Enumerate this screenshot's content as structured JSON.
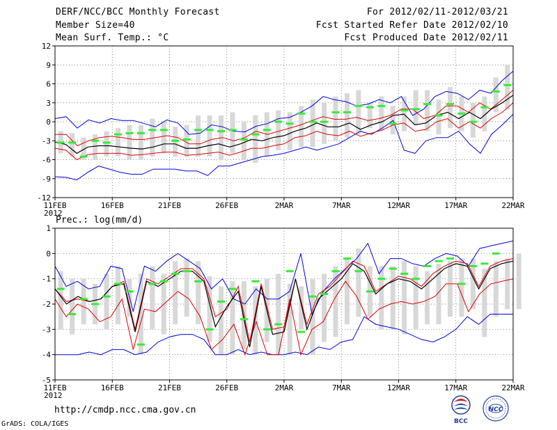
{
  "header": {
    "title": "DERF/NCC/BCC Monthly Forecast",
    "member_size": "Member Size=40",
    "variable": "Mean Surf. Temp.: °C",
    "period": "For 2012/02/11-2012/03/21",
    "fcst_started": "Fcst Started Refer Date 2012/02/10",
    "fcst_produced": "Fcst Produced Date 2012/02/11"
  },
  "precip_title": "Prec.: log(mm/d)",
  "footer": {
    "url": "http://cmdp.ncc.cma.gov.cn",
    "grads": "GrADS: COLA/IGES",
    "logo_left": "BCC",
    "logo_right": "NCC"
  },
  "colors": {
    "box": "#d8d8d8",
    "envelope": "#0000dd",
    "spread": "#dd0000",
    "mean": "#000000",
    "median": "#33ee33",
    "grid": "#555555"
  },
  "chart_data": [
    {
      "type": "line",
      "name": "temperature",
      "title": "Mean Surf. Temp.: °C",
      "xlabel": "",
      "ylabel": "",
      "xlim": [
        0,
        40
      ],
      "ylim": [
        -12,
        12
      ],
      "yticks": [
        -12,
        -9,
        -6,
        -3,
        0,
        3,
        6,
        9,
        12
      ],
      "xticks": [
        {
          "x": 0,
          "label": "11FEB",
          "sub": "2012"
        },
        {
          "x": 5,
          "label": "16FEB"
        },
        {
          "x": 10,
          "label": "21FEB"
        },
        {
          "x": 15,
          "label": "26FEB"
        },
        {
          "x": 20,
          "label": "2MAR"
        },
        {
          "x": 25,
          "label": "7MAR"
        },
        {
          "x": 30,
          "label": "12MAR"
        },
        {
          "x": 35,
          "label": "17MAR"
        },
        {
          "x": 40,
          "label": "22MAR"
        }
      ],
      "series": [
        {
          "name": "max",
          "values": [
            0.5,
            0.8,
            -1.0,
            0.3,
            -0.2,
            0.5,
            0.2,
            0.2,
            -0.3,
            -0.8,
            0.3,
            -0.2,
            -2.0,
            -1.8,
            -0.5,
            -0.8,
            -1.5,
            -1.6,
            -0.7,
            -0.3,
            0.5,
            0.7,
            1.5,
            2.5,
            4.0,
            3.5,
            3.2,
            2.5,
            2.8,
            3.5,
            3.0,
            4.0,
            1.0,
            2.0,
            4.0,
            4.8,
            4.5,
            3.5,
            5.0,
            4.5,
            6.5,
            8.0
          ]
        },
        {
          "name": "upper",
          "values": [
            -2.0,
            -2.0,
            -3.8,
            -3.0,
            -2.5,
            -2.3,
            -2.5,
            -2.8,
            -2.8,
            -2.5,
            -2.2,
            -2.5,
            -3.5,
            -3.5,
            -2.8,
            -2.5,
            -3.0,
            -2.5,
            -1.5,
            -2.0,
            -1.5,
            -1.0,
            -0.5,
            0.2,
            0.8,
            0.4,
            0.4,
            0.7,
            0.2,
            0.5,
            1.0,
            2.0,
            2.0,
            0.5,
            1.0,
            2.5,
            2.5,
            1.5,
            3.0,
            2.0,
            3.5,
            5.0
          ]
        },
        {
          "name": "mean",
          "values": [
            -3.2,
            -3.6,
            -5.0,
            -4.0,
            -3.8,
            -3.8,
            -4.0,
            -4.2,
            -4.3,
            -4.0,
            -3.5,
            -3.5,
            -4.2,
            -4.2,
            -3.8,
            -3.5,
            -4.0,
            -3.5,
            -2.8,
            -3.0,
            -2.5,
            -2.2,
            -1.5,
            -1.0,
            -0.2,
            -0.8,
            -0.8,
            -0.2,
            -1.2,
            -0.5,
            0.0,
            1.0,
            1.2,
            -0.5,
            -0.2,
            1.0,
            1.5,
            0.5,
            1.5,
            0.5,
            2.0,
            3.0,
            4.2
          ]
        },
        {
          "name": "lower",
          "values": [
            -4.2,
            -4.5,
            -6.0,
            -5.2,
            -5.0,
            -5.0,
            -5.0,
            -5.3,
            -5.2,
            -5.0,
            -4.8,
            -4.8,
            -5.3,
            -5.2,
            -5.0,
            -4.8,
            -5.3,
            -4.8,
            -4.2,
            -4.2,
            -3.8,
            -3.5,
            -2.5,
            -2.2,
            -1.5,
            -2.0,
            -2.2,
            -1.5,
            -2.3,
            -1.8,
            -1.3,
            -0.5,
            -0.2,
            -1.5,
            -1.2,
            0.0,
            0.5,
            -1.0,
            0.0,
            -1.0,
            0.5,
            1.5,
            3.0
          ]
        },
        {
          "name": "min",
          "values": [
            -8.7,
            -8.8,
            -9.2,
            -8.0,
            -7.0,
            -7.5,
            -8.0,
            -8.3,
            -8.3,
            -7.5,
            -7.5,
            -7.5,
            -7.8,
            -7.8,
            -8.5,
            -7.0,
            -7.0,
            -6.5,
            -6.0,
            -5.5,
            -5.3,
            -5.0,
            -4.5,
            -4.0,
            -4.5,
            -4.0,
            -3.5,
            -2.5,
            -1.5,
            -2.0,
            -1.0,
            0.2,
            -4.5,
            -5.0,
            -3.0,
            -2.5,
            -2.5,
            -1.5,
            -3.5,
            -5.0,
            -2.0,
            -0.5,
            1.2
          ]
        },
        {
          "name": "median",
          "values": [
            -3.3,
            -3.3,
            -5.5,
            -3.0,
            -3.3,
            -2.0,
            -1.8,
            -1.8,
            -1.3,
            -1.3,
            -3.0,
            -2.8,
            -1.3,
            -1.3,
            -1.5,
            -1.3,
            -2.8,
            -2.0,
            -1.3,
            0.0,
            -0.3,
            1.3,
            0.0,
            0.0,
            1.5,
            1.5,
            2.5,
            2.3,
            2.5,
            -0.3,
            1.8,
            2.0,
            2.8,
            1.0,
            2.8,
            1.3,
            0.0,
            2.3,
            4.8,
            5.8
          ]
        },
        {
          "name": "box_top",
          "values": [
            -1.5,
            -1.8,
            -2.5,
            -2.0,
            -1.5,
            -1.0,
            -0.5,
            -0.5,
            0.5,
            0.0,
            -0.8,
            -0.5,
            1.0,
            1.0,
            1.0,
            1.5,
            0.0,
            1.0,
            1.5,
            1.8,
            1.5,
            2.5,
            3.5,
            3.0,
            4.0,
            4.5,
            5.0,
            3.0,
            4.0,
            2.5,
            4.0,
            5.0,
            5.0,
            3.5,
            5.5,
            4.0,
            3.0,
            4.0,
            7.0,
            9.0
          ]
        },
        {
          "name": "box_bottom",
          "values": [
            -5.0,
            -5.5,
            -6.0,
            -6.0,
            -5.5,
            -5.5,
            -6.0,
            -6.0,
            -5.5,
            -5.0,
            -5.5,
            -5.5,
            -5.5,
            -5.5,
            -6.0,
            -5.0,
            -6.0,
            -6.5,
            -5.5,
            -4.5,
            -4.5,
            -4.0,
            -4.0,
            -3.5,
            -3.0,
            -2.5,
            -2.0,
            -1.0,
            -1.5,
            -2.0,
            -1.5,
            -0.5,
            -1.5,
            -2.0,
            -1.0,
            -1.5,
            -2.5,
            -1.5,
            1.5,
            2.0
          ]
        }
      ]
    },
    {
      "type": "line",
      "name": "precipitation",
      "title": "Prec.: log(mm/d)",
      "xlabel": "",
      "ylabel": "",
      "xlim": [
        0,
        40
      ],
      "ylim": [
        -5,
        1
      ],
      "yticks": [
        -5,
        -4,
        -3,
        -2,
        -1,
        0,
        1
      ],
      "xticks": [
        {
          "x": 0,
          "label": "11FEB",
          "sub": "2012"
        },
        {
          "x": 5,
          "label": "16FEB"
        },
        {
          "x": 10,
          "label": "21FEB"
        },
        {
          "x": 15,
          "label": "26FEB"
        },
        {
          "x": 20,
          "label": "2MAR"
        },
        {
          "x": 25,
          "label": "7MAR"
        },
        {
          "x": 30,
          "label": "12MAR"
        },
        {
          "x": 35,
          "label": "17MAR"
        },
        {
          "x": 40,
          "label": "22MAR"
        }
      ],
      "series": [
        {
          "name": "max",
          "values": [
            -0.5,
            -1.3,
            -1.1,
            -1.4,
            -1.3,
            -0.5,
            -0.6,
            -2.3,
            -0.5,
            -0.7,
            -0.3,
            0.0,
            -0.3,
            -0.6,
            -1.4,
            -1.0,
            -1.8,
            -2.0,
            -1.4,
            -1.8,
            -1.8,
            -1.5,
            0.0,
            -2.4,
            -1.5,
            -1.0,
            -0.6,
            -0.2,
            0.4,
            -0.8,
            -0.2,
            -0.2,
            -0.4,
            -0.5,
            -0.2,
            0.0,
            -0.1,
            -0.5,
            0.2,
            0.3,
            0.4,
            0.5
          ]
        },
        {
          "name": "upper",
          "values": [
            -1.4,
            -1.9,
            -1.8,
            -1.9,
            -1.8,
            -1.3,
            -1.1,
            -3.0,
            -1.0,
            -1.2,
            -0.9,
            -0.6,
            -0.6,
            -1.0,
            -2.5,
            -2.2,
            -1.3,
            -3.5,
            -1.2,
            -3.0,
            -2.9,
            -1.0,
            -2.8,
            -1.6,
            -1.3,
            -0.8,
            -0.3,
            -0.5,
            -1.5,
            -1.2,
            -0.9,
            -1.0,
            -1.3,
            -0.8,
            -0.5,
            -0.3,
            -0.4,
            -1.3,
            -0.5,
            -0.3,
            -0.2
          ]
        },
        {
          "name": "mean",
          "values": [
            -1.4,
            -2.0,
            -1.7,
            -1.9,
            -1.8,
            -1.3,
            -1.2,
            -3.1,
            -1.1,
            -1.3,
            -1.0,
            -0.7,
            -0.7,
            -1.1,
            -2.9,
            -2.1,
            -1.5,
            -3.7,
            -1.3,
            -3.2,
            -3.1,
            -1.0,
            -3.0,
            -1.8,
            -1.4,
            -1.0,
            -0.4,
            -0.7,
            -1.6,
            -1.2,
            -1.0,
            -1.1,
            -1.4,
            -1.0,
            -0.6,
            -0.4,
            -0.5,
            -1.4,
            -0.6,
            -0.4,
            -0.3
          ]
        },
        {
          "name": "lower",
          "values": [
            -1.8,
            -2.5,
            -2.0,
            -2.2,
            -2.7,
            -2.5,
            -1.8,
            -3.8,
            -2.2,
            -2.3,
            -1.9,
            -1.5,
            -1.8,
            -2.5,
            -3.8,
            -3.4,
            -2.8,
            -4.0,
            -2.7,
            -4.0,
            -4.0,
            -1.8,
            -4.0,
            -3.0,
            -2.7,
            -1.8,
            -1.1,
            -1.7,
            -2.6,
            -2.2,
            -2.0,
            -1.9,
            -2.0,
            -1.9,
            -1.7,
            -1.2,
            -1.2,
            -2.3,
            -1.6,
            -1.2,
            -1.1,
            -1.0
          ]
        },
        {
          "name": "min",
          "values": [
            -4.0,
            -4.0,
            -4.0,
            -3.9,
            -4.0,
            -3.8,
            -3.8,
            -4.0,
            -3.9,
            -3.5,
            -3.3,
            -3.2,
            -3.2,
            -3.4,
            -4.0,
            -4.0,
            -3.8,
            -4.0,
            -3.9,
            -4.0,
            -4.0,
            -3.9,
            -4.0,
            -3.7,
            -3.8,
            -3.5,
            -3.4,
            -2.5,
            -2.8,
            -2.9,
            -3.0,
            -3.2,
            -3.4,
            -3.5,
            -3.3,
            -3.0,
            -2.5,
            -2.8,
            -2.4,
            -2.4,
            -2.4
          ]
        },
        {
          "name": "median",
          "values": [
            -1.4,
            -2.4,
            -1.8,
            -2.0,
            -1.7,
            -1.2,
            -1.5,
            -3.6,
            -1.2,
            -1.1,
            -0.8,
            -0.7,
            -1.1,
            -3.0,
            -1.9,
            -1.4,
            -2.6,
            -1.1,
            -3.0,
            -2.8,
            -0.7,
            -3.1,
            -1.7,
            -1.6,
            -0.7,
            -0.2,
            -0.7,
            -1.5,
            -1.0,
            -0.6,
            -0.8,
            -1.0,
            -0.5,
            -0.3,
            -0.2,
            -1.2,
            -0.5,
            -0.4,
            0.0
          ]
        },
        {
          "name": "box_top",
          "values": [
            -0.7,
            -1.0,
            -1.0,
            -1.2,
            -0.8,
            -0.5,
            -1.0,
            -0.8,
            -0.5,
            -0.8,
            -0.3,
            -0.2,
            -0.3,
            -0.9,
            -1.3,
            -1.1,
            -1.1,
            -1.3,
            -1.0,
            -0.8,
            -1.2,
            -1.3,
            -1.0,
            -0.8,
            -0.5,
            -0.2,
            0.2,
            -0.5,
            -0.5,
            -0.5,
            -0.3,
            -0.5,
            -0.7,
            -0.4,
            -0.3,
            -0.2,
            -0.2,
            -0.6,
            -0.3,
            -0.2,
            0.0
          ]
        },
        {
          "name": "box_bottom",
          "values": [
            -3.0,
            -3.2,
            -2.8,
            -2.8,
            -3.0,
            -2.8,
            -2.5,
            -4.0,
            -3.0,
            -3.2,
            -2.8,
            -2.5,
            -2.8,
            -3.5,
            -4.0,
            -4.0,
            -3.8,
            -4.0,
            -3.5,
            -4.0,
            -4.0,
            -3.0,
            -4.0,
            -3.5,
            -3.3,
            -2.8,
            -2.5,
            -2.5,
            -3.0,
            -3.0,
            -3.2,
            -3.0,
            -2.8,
            -2.8,
            -2.5,
            -2.5,
            -2.2,
            -3.3,
            -2.5,
            -2.2,
            -2.2
          ]
        }
      ]
    }
  ]
}
